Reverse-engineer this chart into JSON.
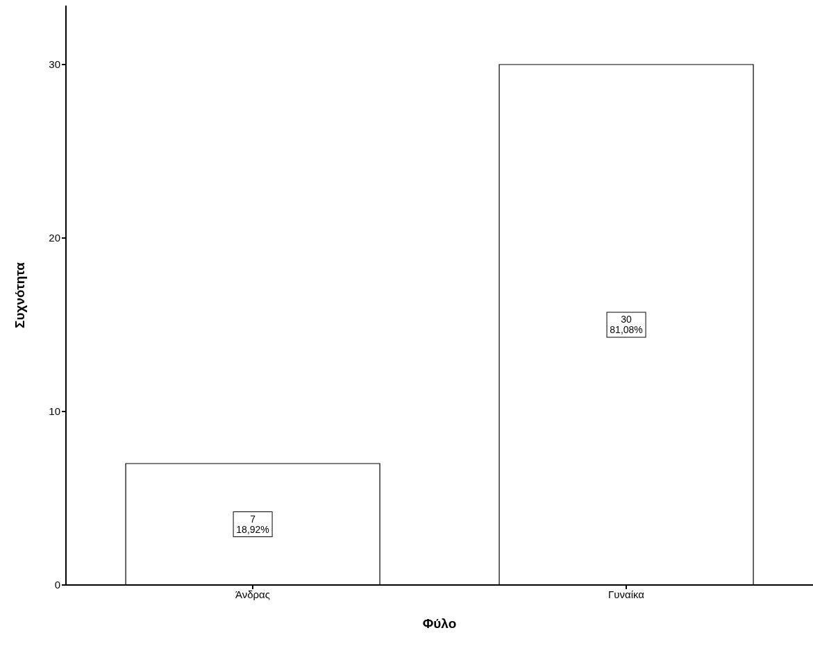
{
  "chart_data": {
    "type": "bar",
    "xlabel": "Φύλο",
    "ylabel": "Συχνότητα",
    "categories": [
      "Άνδρας",
      "Γυναίκα"
    ],
    "values": [
      7,
      30
    ],
    "value_labels": [
      "7\n18,92%",
      "30\n81,08%"
    ],
    "color": "#ffffff",
    "ylim": [
      0,
      33.4
    ],
    "yticks": [
      0,
      10,
      20,
      30
    ],
    "grid": false,
    "legend": false
  }
}
